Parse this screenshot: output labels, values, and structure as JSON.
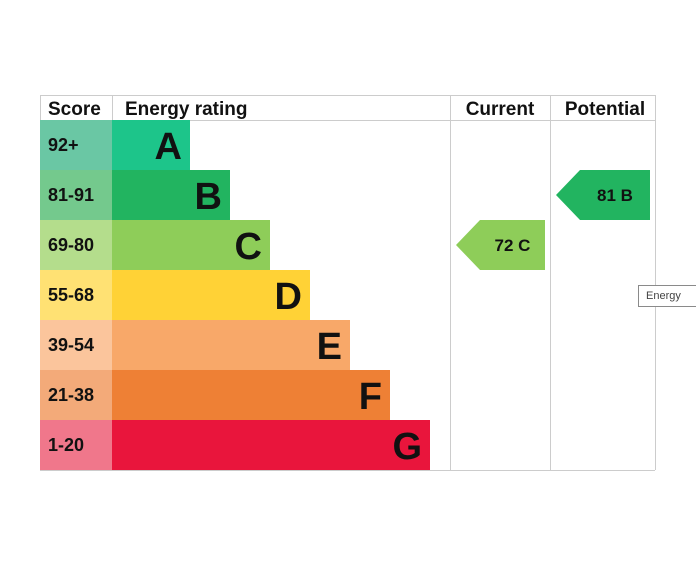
{
  "chart_data": {
    "type": "bar",
    "headers": {
      "score": "Score",
      "rating": "Energy rating",
      "current": "Current",
      "potential": "Potential"
    },
    "bands": [
      {
        "letter": "A",
        "range": "92+",
        "color": "#1dc58a",
        "score_color": "#6ac7a4"
      },
      {
        "letter": "B",
        "range": "81-91",
        "color": "#22b460",
        "score_color": "#74c98d"
      },
      {
        "letter": "C",
        "range": "69-80",
        "color": "#8ecd59",
        "score_color": "#b4dd8c"
      },
      {
        "letter": "D",
        "range": "55-68",
        "color": "#ffd236",
        "score_color": "#ffe173"
      },
      {
        "letter": "E",
        "range": "39-54",
        "color": "#f8a869",
        "score_color": "#fbc59c"
      },
      {
        "letter": "F",
        "range": "21-38",
        "color": "#ee8035",
        "score_color": "#f3aa79"
      },
      {
        "letter": "G",
        "range": "1-20",
        "color": "#e9153c",
        "score_color": "#f0778b"
      }
    ],
    "current": {
      "value": 72,
      "band": "C",
      "text": "72  C",
      "color": "#8ecd59"
    },
    "potential": {
      "value": 81,
      "band": "B",
      "text": "81  B",
      "color": "#22b460"
    }
  },
  "tooltip_text": "Energy"
}
